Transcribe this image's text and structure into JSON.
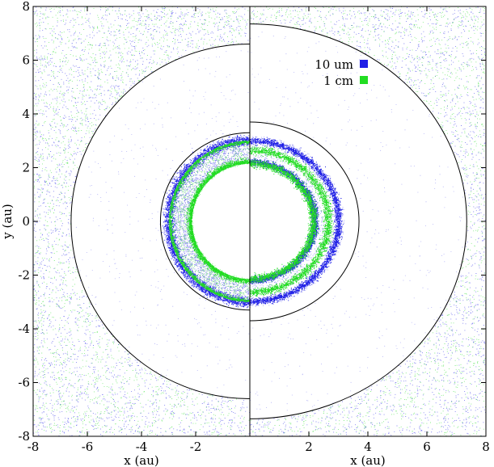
{
  "chart_data": [
    {
      "type": "scatter",
      "title": "",
      "xlabel": "x (au)",
      "ylabel": "y (au)",
      "xlim": [
        -8,
        0
      ],
      "ylim": [
        -8,
        8
      ],
      "x_ticks": [
        "-8",
        "-6",
        "-4",
        "-2"
      ],
      "y_ticks": [
        "-8",
        "-6",
        "-4",
        "-2",
        "0",
        "2",
        "4",
        "6",
        "8"
      ],
      "grid": false,
      "legend": "none",
      "colors": {
        "small": "#1f1fe6",
        "large": "#22dd22",
        "boundary": "#000000"
      },
      "boundary_circles": [
        {
          "radius": 3.3,
          "center": [
            0,
            0
          ]
        },
        {
          "radius": 6.6,
          "center": [
            0,
            0
          ]
        }
      ],
      "series": [
        {
          "color": "#1f1fe6",
          "rings": [
            {
              "r_inner": 2.2,
              "r_outer": 3.2,
              "peak": 3.0
            }
          ],
          "description_points": "dense ring near outer edge of inner disk"
        },
        {
          "color": "#22dd22",
          "rings": [
            {
              "r_inner": 2.1,
              "r_outer": 3.0,
              "peak": 2.15
            }
          ]
        }
      ]
    },
    {
      "type": "scatter",
      "title": "",
      "xlabel": "x (au)",
      "ylabel": "",
      "xlim": [
        0,
        8
      ],
      "ylim": [
        -8,
        8
      ],
      "x_ticks": [
        "2",
        "4",
        "6",
        "8"
      ],
      "grid": false,
      "legend": "top-right",
      "colors": {
        "small": "#1f1fe6",
        "large": "#22dd22",
        "boundary": "#000000"
      },
      "boundary_circles": [
        {
          "radius": 3.7,
          "center": [
            0,
            0
          ]
        },
        {
          "radius": 7.35,
          "center": [
            0,
            0
          ]
        }
      ],
      "series": [
        {
          "name": "10 um",
          "color": "#1f1fe6",
          "rings": [
            {
              "r": 2.2
            },
            {
              "r": 3.0
            }
          ]
        },
        {
          "name": "1 cm",
          "color": "#22dd22",
          "rings": [
            {
              "r": 2.15
            },
            {
              "r": 2.65
            }
          ]
        }
      ]
    }
  ]
}
